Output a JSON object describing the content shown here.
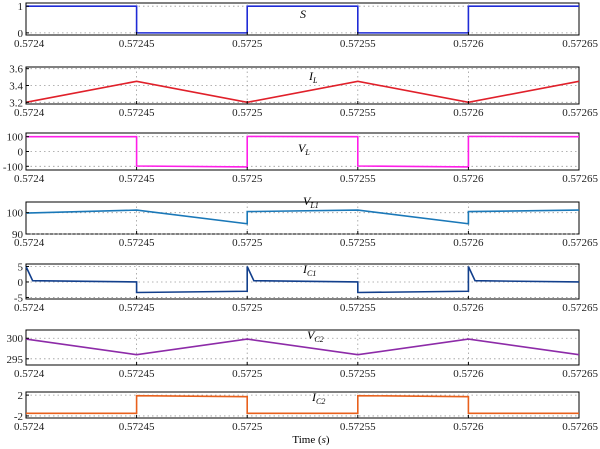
{
  "chart_data": [
    {
      "type": "line",
      "signal": "S",
      "label_main": "S",
      "label_sub": "",
      "color": "#1f2bd6",
      "x": [
        0.5724,
        0.57245,
        0.57245,
        0.5725,
        0.5725,
        0.57255,
        0.57255,
        0.5726,
        0.5726,
        0.57265
      ],
      "y": [
        1,
        1,
        0,
        0,
        1,
        1,
        0,
        0,
        1,
        1
      ],
      "ylim": [
        -0.08,
        1.12
      ],
      "yticks": [
        0,
        1
      ],
      "ytick_labels": [
        "0",
        "1"
      ],
      "xticks": [
        0.5724,
        0.57245,
        0.5725,
        0.57255,
        0.5726,
        0.57265
      ],
      "xtick_labels": [
        "0.5724",
        "0.57245",
        "0.5725",
        "0.57255",
        "0.5726",
        "0.57265"
      ],
      "grid": true
    },
    {
      "type": "line",
      "signal": "IL",
      "label_main": "I",
      "label_sub": "L",
      "color": "#e0202a",
      "x": [
        0.5724,
        0.57245,
        0.5725,
        0.57255,
        0.5726,
        0.57265
      ],
      "y": [
        3.2,
        3.45,
        3.2,
        3.45,
        3.2,
        3.45
      ],
      "ylim": [
        3.18,
        3.62
      ],
      "yticks": [
        3.2,
        3.4,
        3.6
      ],
      "ytick_labels": [
        "3.2",
        "3.4",
        "3.6"
      ],
      "xticks": [
        0.5724,
        0.57245,
        0.5725,
        0.57255,
        0.5726,
        0.57265
      ],
      "xtick_labels": [
        "0.5724",
        "0.57245",
        "0.5725",
        "0.57255",
        "0.5726",
        "0.57265"
      ],
      "grid": true
    },
    {
      "type": "line",
      "signal": "VL",
      "label_main": "V",
      "label_sub": "L",
      "color": "#ff1ee8",
      "x": [
        0.5724,
        0.57245,
        0.57245,
        0.5725,
        0.5725,
        0.57255,
        0.57255,
        0.5726,
        0.5726,
        0.57265
      ],
      "y": [
        100,
        100,
        -98,
        -104,
        102,
        100,
        -98,
        -104,
        102,
        100
      ],
      "ylim": [
        -125,
        125
      ],
      "yticks": [
        -100,
        0,
        100
      ],
      "ytick_labels": [
        "-100",
        "0",
        "100"
      ],
      "xticks": [
        0.5724,
        0.57245,
        0.5725,
        0.57255,
        0.5726,
        0.57265
      ],
      "xtick_labels": [
        "0.5724",
        "0.57245",
        "0.5725",
        "0.57255",
        "0.5726",
        "0.57265"
      ],
      "grid": true
    },
    {
      "type": "line",
      "signal": "VL1",
      "label_main": "V",
      "label_sub": "L1",
      "color": "#1a78b8",
      "x": [
        0.5724,
        0.57245,
        0.5725,
        0.5725,
        0.57255,
        0.5726,
        0.5726,
        0.57265
      ],
      "y": [
        99.8,
        101.2,
        94.8,
        100.5,
        101.2,
        94.8,
        100.5,
        101.2
      ],
      "ylim": [
        90,
        105
      ],
      "yticks": [
        90,
        100
      ],
      "ytick_labels": [
        "90",
        "100"
      ],
      "xticks": [
        0.5724,
        0.57245,
        0.5725,
        0.57255,
        0.5726,
        0.57265
      ],
      "xtick_labels": [
        "0.5724",
        "0.57245",
        "0.5725",
        "0.57255",
        "0.5726",
        "0.57265"
      ],
      "grid": true
    },
    {
      "type": "line",
      "signal": "IC1",
      "label_main": "I",
      "label_sub": "C1",
      "color": "#123f8c",
      "x": [
        0.5724,
        0.572403,
        0.57245,
        0.57245,
        0.5725,
        0.5725,
        0.572503,
        0.57255,
        0.57255,
        0.5726,
        0.5726,
        0.572603,
        0.57265
      ],
      "y": [
        5,
        0.4,
        0,
        -3.4,
        -3,
        5,
        0.4,
        0,
        -3.4,
        -3,
        5,
        0.4,
        0
      ],
      "ylim": [
        -5.5,
        5.8
      ],
      "yticks": [
        -5,
        0,
        5
      ],
      "ytick_labels": [
        "-5",
        "0",
        "5"
      ],
      "xticks": [
        0.5724,
        0.57245,
        0.5725,
        0.57255,
        0.5726,
        0.57265
      ],
      "xtick_labels": [
        "0.5724",
        "0.57245",
        "0.5725",
        "0.57255",
        "0.5726",
        "0.57265"
      ],
      "grid": true
    },
    {
      "type": "line",
      "signal": "VC2",
      "label_main": "V",
      "label_sub": "C2",
      "color": "#8d2ba8",
      "x": [
        0.5724,
        0.57245,
        0.5725,
        0.57255,
        0.5726,
        0.57265
      ],
      "y": [
        299.8,
        296,
        299.8,
        296,
        299.8,
        296
      ],
      "ylim": [
        293.5,
        302
      ],
      "yticks": [
        295,
        300
      ],
      "ytick_labels": [
        "295",
        "300"
      ],
      "xticks": [
        0.5724,
        0.57245,
        0.5725,
        0.57255,
        0.5726,
        0.57265
      ],
      "xtick_labels": [
        "0.5724",
        "0.57245",
        "0.5725",
        "0.57255",
        "0.5726",
        "0.57265"
      ],
      "grid": true
    },
    {
      "type": "line",
      "signal": "IC2",
      "label_main": "I",
      "label_sub": "C2",
      "color": "#e8601c",
      "x": [
        0.5724,
        0.57245,
        0.57245,
        0.5725,
        0.5725,
        0.57255,
        0.57255,
        0.5726,
        0.5726,
        0.57265
      ],
      "y": [
        -1.5,
        -1.5,
        1.9,
        1.7,
        -1.5,
        -1.5,
        1.9,
        1.7,
        -1.5,
        -1.5
      ],
      "ylim": [
        -2.4,
        2.6
      ],
      "yticks": [
        -2,
        2
      ],
      "ytick_labels": [
        "-2",
        "2"
      ],
      "xticks": [
        0.5724,
        0.57245,
        0.5725,
        0.57255,
        0.5726,
        0.57265
      ],
      "xtick_labels": [
        "0.5724",
        "0.57245",
        "0.5725",
        "0.57255",
        "0.5726",
        "0.57265"
      ],
      "grid": true
    }
  ],
  "xlabel_main": "Time",
  "xlabel_unit": "s"
}
